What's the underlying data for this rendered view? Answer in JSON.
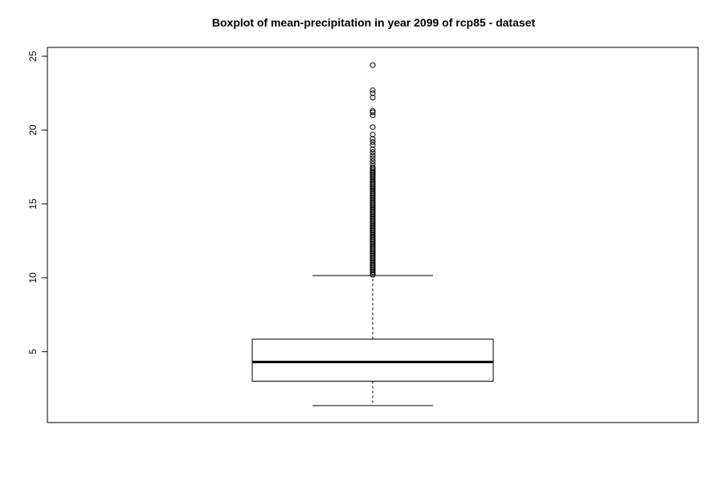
{
  "chart_data": {
    "type": "boxplot",
    "title": "Boxplot of mean-precipitation in year 2099 of rcp85 - dataset",
    "xlabel": "",
    "ylabel": "",
    "ylim": [
      0.2,
      25.6
    ],
    "yticks": [
      5,
      10,
      15,
      20,
      25
    ],
    "yticklabels": [
      "5",
      "10",
      "15",
      "20",
      "25"
    ],
    "box": {
      "whisker_low": 1.35,
      "q1": 3.0,
      "median": 4.3,
      "q3": 5.85,
      "whisker_high": 10.15
    },
    "outliers": [
      10.2,
      10.3,
      10.4,
      10.5,
      10.6,
      10.7,
      10.8,
      10.9,
      11.0,
      11.1,
      11.2,
      11.3,
      11.4,
      11.5,
      11.6,
      11.7,
      11.8,
      11.9,
      12.0,
      12.1,
      12.2,
      12.3,
      12.4,
      12.5,
      12.6,
      12.7,
      12.8,
      12.9,
      13.0,
      13.1,
      13.2,
      13.3,
      13.4,
      13.5,
      13.6,
      13.7,
      13.8,
      13.9,
      14.0,
      14.1,
      14.2,
      14.3,
      14.4,
      14.5,
      14.6,
      14.7,
      14.8,
      14.9,
      15.0,
      15.1,
      15.2,
      15.3,
      15.4,
      15.5,
      15.6,
      15.7,
      15.8,
      15.9,
      16.0,
      16.1,
      16.2,
      16.3,
      16.4,
      16.5,
      16.6,
      16.7,
      16.8,
      16.9,
      17.0,
      17.1,
      17.2,
      17.3,
      17.4,
      17.5,
      17.7,
      17.9,
      18.1,
      18.3,
      18.5,
      18.7,
      19.0,
      19.2,
      19.4,
      19.7,
      20.2,
      21.0,
      21.2,
      21.3,
      22.2,
      22.5,
      22.7,
      24.4
    ]
  }
}
